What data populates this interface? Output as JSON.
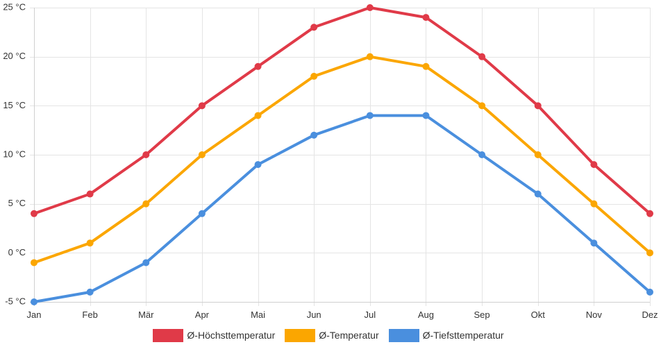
{
  "chart_data": {
    "type": "line",
    "categories": [
      "Jan",
      "Feb",
      "Mär",
      "Apr",
      "Mai",
      "Jun",
      "Jul",
      "Aug",
      "Sep",
      "Okt",
      "Nov",
      "Dez"
    ],
    "y_ticks": [
      -5,
      0,
      5,
      10,
      15,
      20,
      25
    ],
    "y_unit": "°C",
    "ylim": [
      -5,
      25
    ],
    "grid": true,
    "legend_position": "bottom-center",
    "series": [
      {
        "name": "Ø-Höchsttemperatur",
        "color": "#e03a48",
        "values": [
          4,
          6,
          10,
          15,
          19,
          23,
          25,
          24,
          20,
          15,
          9,
          4
        ]
      },
      {
        "name": "Ø-Temperatur",
        "color": "#fba600",
        "values": [
          -1,
          1,
          5,
          10,
          14,
          18,
          20,
          19,
          15,
          10,
          5,
          0
        ]
      },
      {
        "name": "Ø-Tiefsttemperatur",
        "color": "#4a8fde",
        "values": [
          -5,
          -4,
          -1,
          4,
          9,
          12,
          14,
          14,
          10,
          6,
          1,
          -4
        ]
      }
    ]
  }
}
